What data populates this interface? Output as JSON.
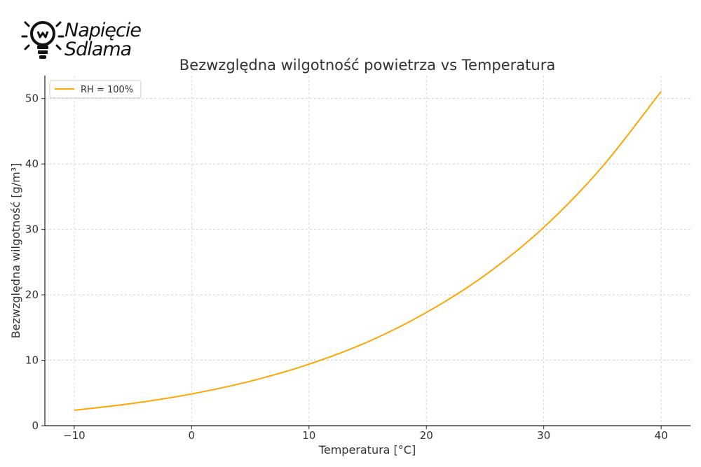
{
  "logo": {
    "line1": "Napięcie",
    "line2": "Sdlama",
    "icon": "lightbulb-icon"
  },
  "chart_data": {
    "type": "line",
    "title": "Bezwzględna wilgotność powietrza vs Temperatura",
    "xlabel": "Temperatura [°C]",
    "ylabel": "Bezwzględna wilgotność [g/m³]",
    "xlim": [
      -12.5,
      42.5
    ],
    "ylim": [
      0,
      53.5
    ],
    "xticks": [
      -10,
      0,
      10,
      20,
      30,
      40
    ],
    "xtick_labels": [
      "−10",
      "0",
      "10",
      "20",
      "30",
      "40"
    ],
    "yticks": [
      0,
      10,
      20,
      30,
      40,
      50
    ],
    "ytick_labels": [
      "0",
      "10",
      "20",
      "30",
      "40",
      "50"
    ],
    "grid": true,
    "legend_position": "top-left",
    "series": [
      {
        "name": "RH = 100%",
        "color": "#FFA500",
        "x": [
          -10,
          -5,
          0,
          5,
          10,
          15,
          20,
          25,
          30,
          35,
          40
        ],
        "y": [
          2.36,
          3.41,
          4.85,
          6.8,
          9.4,
          12.8,
          17.3,
          23.0,
          30.3,
          39.6,
          51.1
        ]
      }
    ]
  }
}
